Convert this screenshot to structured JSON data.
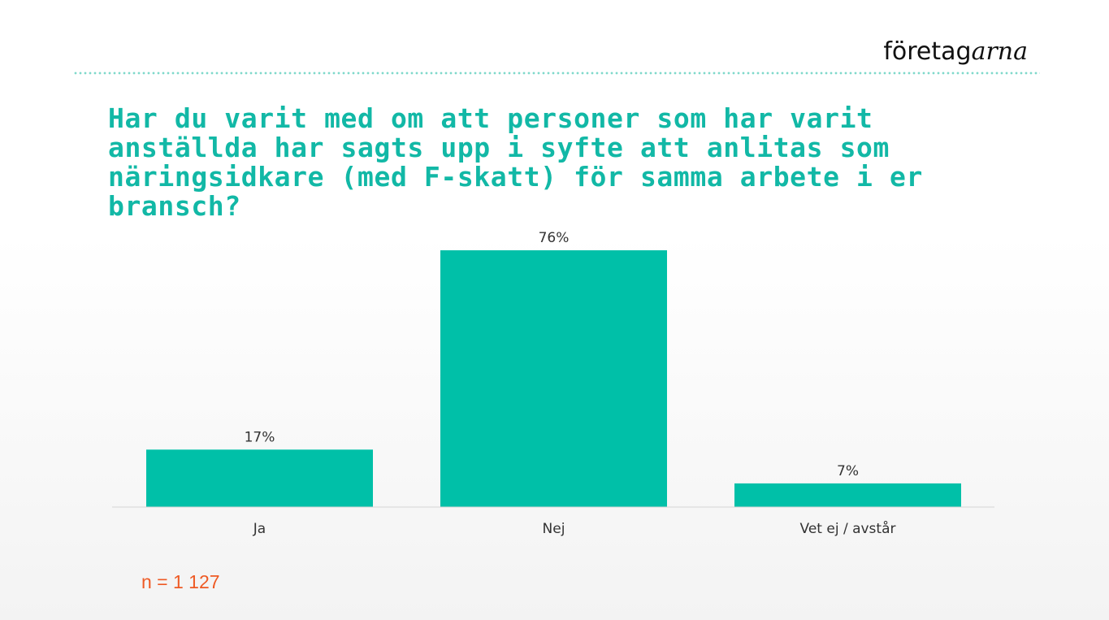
{
  "brand": {
    "part1": "företag",
    "part2": "arna"
  },
  "colors": {
    "accent": "#12b8a6",
    "bar": "#00c0a8",
    "note": "#ee5a24"
  },
  "note": "n = 1 127",
  "chart_data": {
    "type": "bar",
    "title": "Har du varit med om att personer som har varit anställda har sagts upp i syfte att anlitas som näringsidkare (med F-skatt) för samma arbete i er bransch?",
    "categories": [
      "Ja",
      "Nej",
      "Vet ej / avstår"
    ],
    "values": [
      17,
      76,
      7
    ],
    "value_labels": [
      "17%",
      "76%",
      "7%"
    ],
    "xlabel": "",
    "ylabel": "",
    "ylim": [
      0,
      76
    ],
    "grid": false
  }
}
